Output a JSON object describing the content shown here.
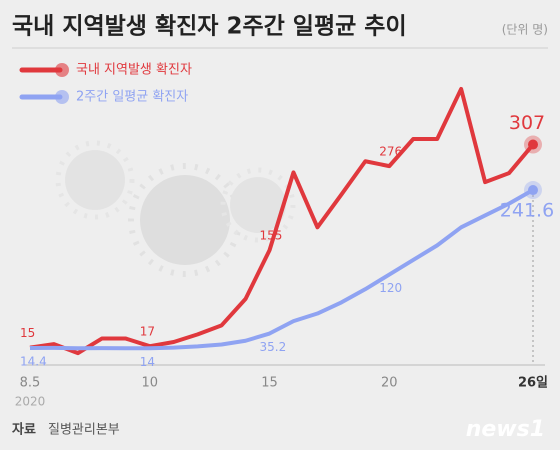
{
  "chart_data": {
    "type": "line",
    "title": "국내 지역발생 확진자 2주간 일평균 추이",
    "unit": "(단위 명)",
    "year": "2020",
    "source_label": "자료",
    "source": "질병관리본부",
    "watermark": "news1",
    "categories": [
      "8.5",
      null,
      null,
      null,
      null,
      "10",
      null,
      null,
      null,
      null,
      "15",
      null,
      null,
      null,
      null,
      "20",
      null,
      null,
      null,
      null,
      null,
      "26일"
    ],
    "series": [
      {
        "name": "국내 지역발생 확진자",
        "color": "#e0383d",
        "values": [
          15,
          20,
          7,
          28,
          28,
          17,
          23,
          34,
          47,
          85,
          155,
          267,
          188,
          235,
          283,
          276,
          315,
          315,
          387,
          253,
          266,
          307
        ]
      },
      {
        "name": "2주간 일평균 확진자",
        "color": "#8fa3f2",
        "values": [
          14.4,
          14.5,
          14,
          14.2,
          14,
          14,
          15,
          16.8,
          19.4,
          24.8,
          35.2,
          53,
          64,
          80,
          99,
          120,
          141,
          162,
          188,
          205,
          222,
          241.6
        ]
      }
    ],
    "ylim": [
      0,
      420
    ]
  }
}
